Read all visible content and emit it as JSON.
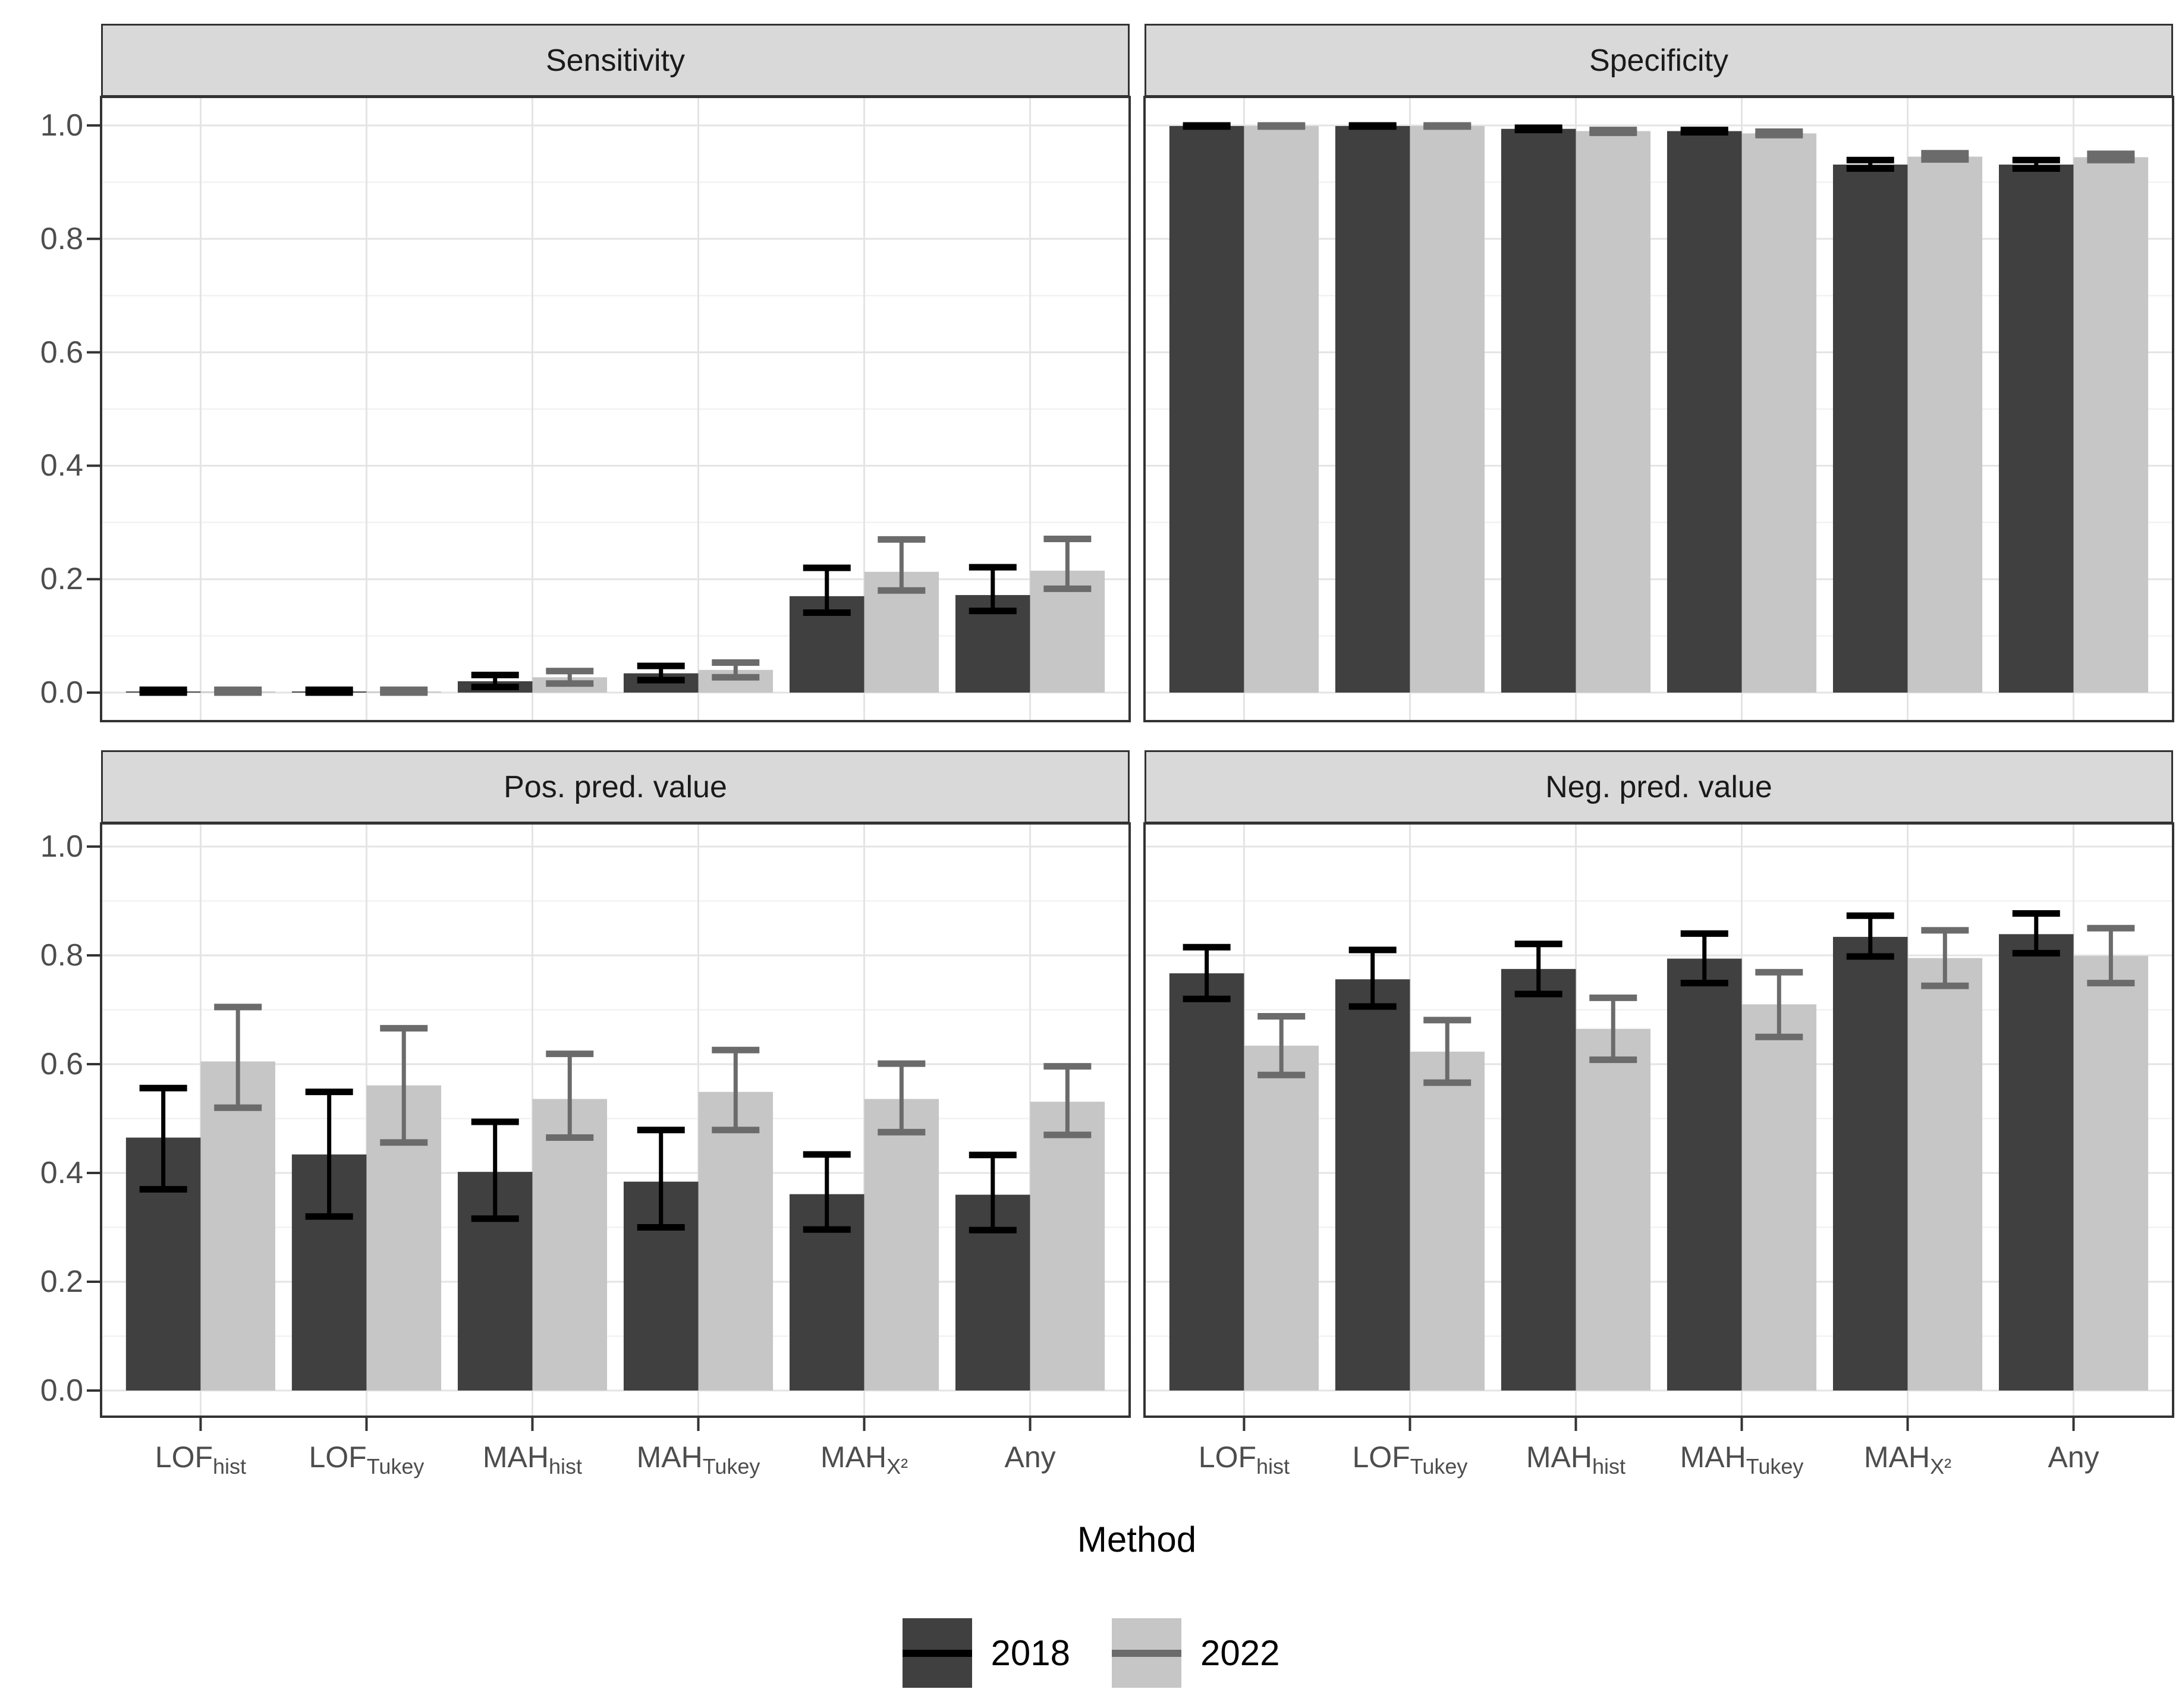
{
  "figure": {
    "axis_title_x": "Method",
    "y_ticks": [
      "0.0",
      "0.2",
      "0.4",
      "0.6",
      "0.8",
      "1.0"
    ],
    "methods": [
      {
        "main": "LOF",
        "sub": "hist"
      },
      {
        "main": "LOF",
        "sub": "Tukey"
      },
      {
        "main": "MAH",
        "sub": "hist"
      },
      {
        "main": "MAH",
        "sub": "Tukey"
      },
      {
        "main": "MAH",
        "sub": "X²"
      },
      {
        "main": "Any",
        "sub": ""
      }
    ],
    "legend": {
      "items": [
        {
          "label": "2018",
          "fill": "#404040",
          "line": "#000000"
        },
        {
          "label": "2022",
          "fill": "#c6c6c6",
          "line": "#6b6b6b"
        }
      ]
    },
    "colors": {
      "bar_2018": "#404040",
      "bar_2022": "#c6c6c6",
      "errorbar_2018": "#000000",
      "errorbar_2022": "#6b6b6b",
      "strip_background": "#d9d9d9",
      "panel_border": "#333333",
      "grid_major": "#e4e4e4",
      "grid_minor": "#f2f2f2",
      "tick_mark": "#333333",
      "tick_text": "#4d4d4d"
    }
  },
  "chart_data": [
    {
      "type": "bar",
      "title": "Sensitivity",
      "categories": [
        "LOF_hist",
        "LOF_Tukey",
        "MAH_hist",
        "MAH_Tukey",
        "MAH_X2",
        "Any"
      ],
      "ylim": [
        0,
        1
      ],
      "grid": true,
      "legend_position": "bottom",
      "series": [
        {
          "name": "2018",
          "values": [
            0.002,
            0.002,
            0.02,
            0.034,
            0.17,
            0.172
          ],
          "ci_low": [
            0.0,
            0.0,
            0.01,
            0.022,
            0.141,
            0.144
          ],
          "ci_high": [
            0.005,
            0.005,
            0.031,
            0.047,
            0.22,
            0.221
          ]
        },
        {
          "name": "2022",
          "values": [
            0.002,
            0.002,
            0.027,
            0.04,
            0.213,
            0.215
          ],
          "ci_low": [
            0.0,
            0.0,
            0.016,
            0.027,
            0.18,
            0.183
          ],
          "ci_high": [
            0.005,
            0.005,
            0.038,
            0.053,
            0.27,
            0.271
          ]
        }
      ]
    },
    {
      "type": "bar",
      "title": "Specificity",
      "categories": [
        "LOF_hist",
        "LOF_Tukey",
        "MAH_hist",
        "MAH_Tukey",
        "MAH_X2",
        "Any"
      ],
      "ylim": [
        0,
        1
      ],
      "grid": true,
      "legend_position": "bottom",
      "series": [
        {
          "name": "2018",
          "values": [
            0.999,
            0.999,
            0.994,
            0.99,
            0.931,
            0.931
          ],
          "ci_low": [
            0.998,
            0.998,
            0.992,
            0.988,
            0.924,
            0.924
          ],
          "ci_high": [
            1.0,
            1.0,
            0.996,
            0.992,
            0.939,
            0.939
          ]
        },
        {
          "name": "2022",
          "values": [
            0.999,
            0.999,
            0.99,
            0.986,
            0.945,
            0.944
          ],
          "ci_low": [
            0.998,
            0.998,
            0.987,
            0.983,
            0.94,
            0.939
          ],
          "ci_high": [
            1.0,
            1.0,
            0.992,
            0.989,
            0.951,
            0.95
          ]
        }
      ]
    },
    {
      "type": "bar",
      "title": "Pos. pred. value",
      "categories": [
        "LOF_hist",
        "LOF_Tukey",
        "MAH_hist",
        "MAH_Tukey",
        "MAH_X2",
        "Any"
      ],
      "ylim": [
        0,
        1
      ],
      "grid": true,
      "legend_position": "bottom",
      "series": [
        {
          "name": "2018",
          "values": [
            0.465,
            0.434,
            0.402,
            0.384,
            0.361,
            0.36
          ],
          "ci_low": [
            0.37,
            0.32,
            0.316,
            0.3,
            0.296,
            0.295
          ],
          "ci_high": [
            0.556,
            0.549,
            0.494,
            0.479,
            0.434,
            0.433
          ]
        },
        {
          "name": "2022",
          "values": [
            0.605,
            0.561,
            0.536,
            0.549,
            0.536,
            0.531
          ],
          "ci_low": [
            0.52,
            0.456,
            0.465,
            0.479,
            0.475,
            0.47
          ],
          "ci_high": [
            0.705,
            0.666,
            0.619,
            0.626,
            0.601,
            0.596
          ]
        }
      ]
    },
    {
      "type": "bar",
      "title": "Neg. pred. value",
      "categories": [
        "LOF_hist",
        "LOF_Tukey",
        "MAH_hist",
        "MAH_Tukey",
        "MAH_X2",
        "Any"
      ],
      "ylim": [
        0,
        1
      ],
      "grid": true,
      "legend_position": "bottom",
      "series": [
        {
          "name": "2018",
          "values": [
            0.767,
            0.756,
            0.775,
            0.794,
            0.834,
            0.839
          ],
          "ci_low": [
            0.72,
            0.706,
            0.729,
            0.749,
            0.798,
            0.804
          ],
          "ci_high": [
            0.815,
            0.81,
            0.821,
            0.84,
            0.873,
            0.877
          ]
        },
        {
          "name": "2022",
          "values": [
            0.634,
            0.623,
            0.665,
            0.71,
            0.795,
            0.799
          ],
          "ci_low": [
            0.58,
            0.566,
            0.608,
            0.65,
            0.744,
            0.749
          ],
          "ci_high": [
            0.688,
            0.681,
            0.722,
            0.769,
            0.846,
            0.85
          ]
        }
      ]
    }
  ]
}
